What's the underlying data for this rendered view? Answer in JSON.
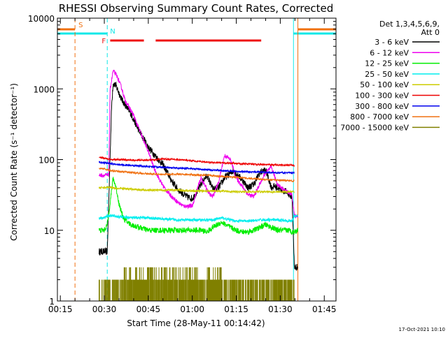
{
  "chart_data": {
    "type": "line",
    "title": "RHESSI Observing Summary Count Rates, Corrected",
    "xlabel": "Start Time (28-May-11 00:14:42)",
    "ylabel": "Corrected Count Rate (s⁻¹ detector⁻¹)",
    "footer": "17-Oct-2021 10:10",
    "x_unit": "minutes after 00:14:42",
    "x_range": [
      -1,
      94
    ],
    "x_ticks": [
      {
        "label": "00:15",
        "t": 0
      },
      {
        "label": "00:30",
        "t": 15
      },
      {
        "label": "00:45",
        "t": 30
      },
      {
        "label": "01:00",
        "t": 45
      },
      {
        "label": "01:15",
        "t": 60
      },
      {
        "label": "01:30",
        "t": 75
      },
      {
        "label": "01:45",
        "t": 90
      }
    ],
    "y_scale": "log",
    "ylim": [
      1,
      10000
    ],
    "y_ticks": [
      {
        "label": "1",
        "v": 1
      },
      {
        "label": "10",
        "v": 10
      },
      {
        "label": "100",
        "v": 100
      },
      {
        "label": "1000",
        "v": 1000
      },
      {
        "label": "10000",
        "v": 10000
      }
    ],
    "legend_header": [
      "Det 1,3,4,5,6,9,",
      "Att 0"
    ],
    "legend_position": "right",
    "flags": {
      "saa_label": "S",
      "night_label": "N",
      "flare_label": "F",
      "saa": [
        [
          -1,
          5
        ],
        [
          81,
          94
        ]
      ],
      "night": [
        [
          -1,
          16
        ],
        [
          79.5,
          94
        ]
      ],
      "flare": [
        [
          17,
          28.5
        ],
        [
          32.5,
          68.5
        ]
      ],
      "saa_markers": [
        5,
        81
      ],
      "night_markers": [
        16,
        79.5,
        94
      ]
    },
    "colors": {
      "axes": "#000000",
      "saa": "#f07010",
      "night": "#10e8e8",
      "flare": "#ee1111"
    },
    "series": [
      {
        "name": "3 - 6 keV",
        "color": "#000000",
        "noise": 0.05,
        "x": [
          13.2,
          13.5,
          15,
          16,
          17.5,
          18,
          19,
          21,
          24,
          26,
          28,
          30,
          33,
          35,
          38,
          40,
          43,
          45,
          46,
          48,
          50,
          52,
          54,
          56,
          59,
          62,
          64,
          66,
          68,
          70,
          72,
          73,
          75,
          77,
          79,
          79.8,
          80.5,
          81
        ],
        "y": [
          5,
          5,
          5,
          5,
          600,
          1200,
          1100,
          700,
          450,
          300,
          210,
          150,
          105,
          85,
          50,
          38,
          30,
          28,
          32,
          45,
          60,
          38,
          40,
          55,
          70,
          52,
          40,
          45,
          65,
          72,
          40,
          42,
          38,
          35,
          30,
          3,
          3,
          3
        ]
      },
      {
        "name": "6 - 12 keV",
        "color": "#ee00ee",
        "noise": 0.03,
        "x": [
          13.2,
          15,
          16,
          16.5,
          17,
          18,
          19,
          20,
          21,
          22,
          24,
          25,
          27,
          30,
          32,
          34,
          36,
          38,
          40,
          42,
          43,
          45,
          47,
          48,
          50,
          51,
          52,
          54,
          55,
          56,
          58,
          60,
          62,
          64,
          66,
          68,
          70,
          72,
          74,
          76,
          79,
          79.8,
          81
        ],
        "y": [
          60,
          60,
          60,
          60,
          1000,
          1800,
          1600,
          1300,
          1000,
          700,
          500,
          420,
          260,
          130,
          75,
          50,
          37,
          30,
          25,
          22,
          22,
          22,
          42,
          55,
          38,
          32,
          30,
          48,
          75,
          115,
          100,
          55,
          42,
          32,
          30,
          45,
          65,
          78,
          45,
          38,
          32,
          16,
          16
        ]
      },
      {
        "name": "12 - 25 keV",
        "color": "#00ee00",
        "noise": 0.04,
        "x": [
          13.2,
          15,
          16,
          17,
          18,
          19,
          20,
          21,
          22,
          24,
          30,
          35,
          40,
          43,
          45,
          48,
          50,
          52,
          55,
          58,
          60,
          62,
          64,
          66,
          68,
          70,
          72,
          74,
          76,
          78,
          79,
          79.8,
          81
        ],
        "y": [
          10,
          10,
          12,
          25,
          55,
          40,
          24,
          17,
          14,
          12,
          10,
          10,
          10,
          10,
          10,
          10,
          9.5,
          11,
          13,
          11,
          10,
          9.5,
          9.5,
          10,
          11,
          12,
          11,
          10,
          10,
          10,
          9.5,
          9.5,
          10
        ]
      },
      {
        "name": "25 - 50 keV",
        "color": "#00eeee",
        "noise": 0.02,
        "x": [
          13.2,
          15,
          16,
          17,
          18,
          20,
          25,
          30,
          35,
          40,
          45,
          50,
          52,
          55,
          58,
          60,
          62,
          65,
          68,
          70,
          75,
          79,
          79.8,
          81
        ],
        "y": [
          15,
          15,
          16,
          16,
          16,
          15.5,
          15,
          15,
          14.5,
          14,
          14,
          14,
          14,
          15,
          14,
          13.5,
          13.5,
          13.5,
          14,
          14,
          14,
          13.5,
          16,
          16
        ]
      },
      {
        "name": "50 - 100 keV",
        "color": "#cccc00",
        "noise": 0.015,
        "x": [
          13.2,
          15,
          17,
          18,
          20,
          25,
          30,
          35,
          40,
          45,
          50,
          55,
          60,
          65,
          70,
          75,
          79,
          79.8
        ],
        "y": [
          40,
          40,
          41,
          40,
          39,
          38,
          37,
          37,
          37,
          36,
          36,
          36,
          35,
          35,
          35,
          35,
          35,
          35
        ]
      },
      {
        "name": "100 - 300 keV",
        "color": "#ee0000",
        "noise": 0.012,
        "x": [
          13.2,
          15,
          17,
          20,
          25,
          30,
          35,
          40,
          45,
          50,
          55,
          60,
          65,
          70,
          75,
          79,
          79.8
        ],
        "y": [
          108,
          105,
          100,
          100,
          98,
          98,
          102,
          100,
          96,
          92,
          90,
          88,
          86,
          85,
          84,
          83,
          83
        ]
      },
      {
        "name": "300 - 800 keV",
        "color": "#0000ee",
        "noise": 0.012,
        "x": [
          13.2,
          15,
          17,
          20,
          25,
          30,
          35,
          40,
          45,
          50,
          55,
          60,
          65,
          70,
          75,
          79,
          79.8
        ],
        "y": [
          92,
          90,
          88,
          85,
          82,
          80,
          78,
          76,
          74,
          72,
          70,
          68,
          67,
          66,
          65,
          65,
          65
        ]
      },
      {
        "name": "800 - 7000 keV",
        "color": "#f07010",
        "noise": 0.012,
        "x": [
          13.2,
          15,
          17,
          20,
          25,
          30,
          35,
          40,
          45,
          50,
          55,
          60,
          65,
          70,
          75,
          79,
          79.8
        ],
        "y": [
          75,
          74,
          70,
          68,
          65,
          63,
          62,
          62,
          61,
          60,
          58,
          56,
          54,
          52,
          51,
          50,
          50
        ]
      },
      {
        "name": "7000 - 15000 keV",
        "color": "#808000",
        "noise": 0,
        "x": [
          13.2,
          79.8
        ],
        "y": [
          2,
          2
        ]
      }
    ]
  }
}
